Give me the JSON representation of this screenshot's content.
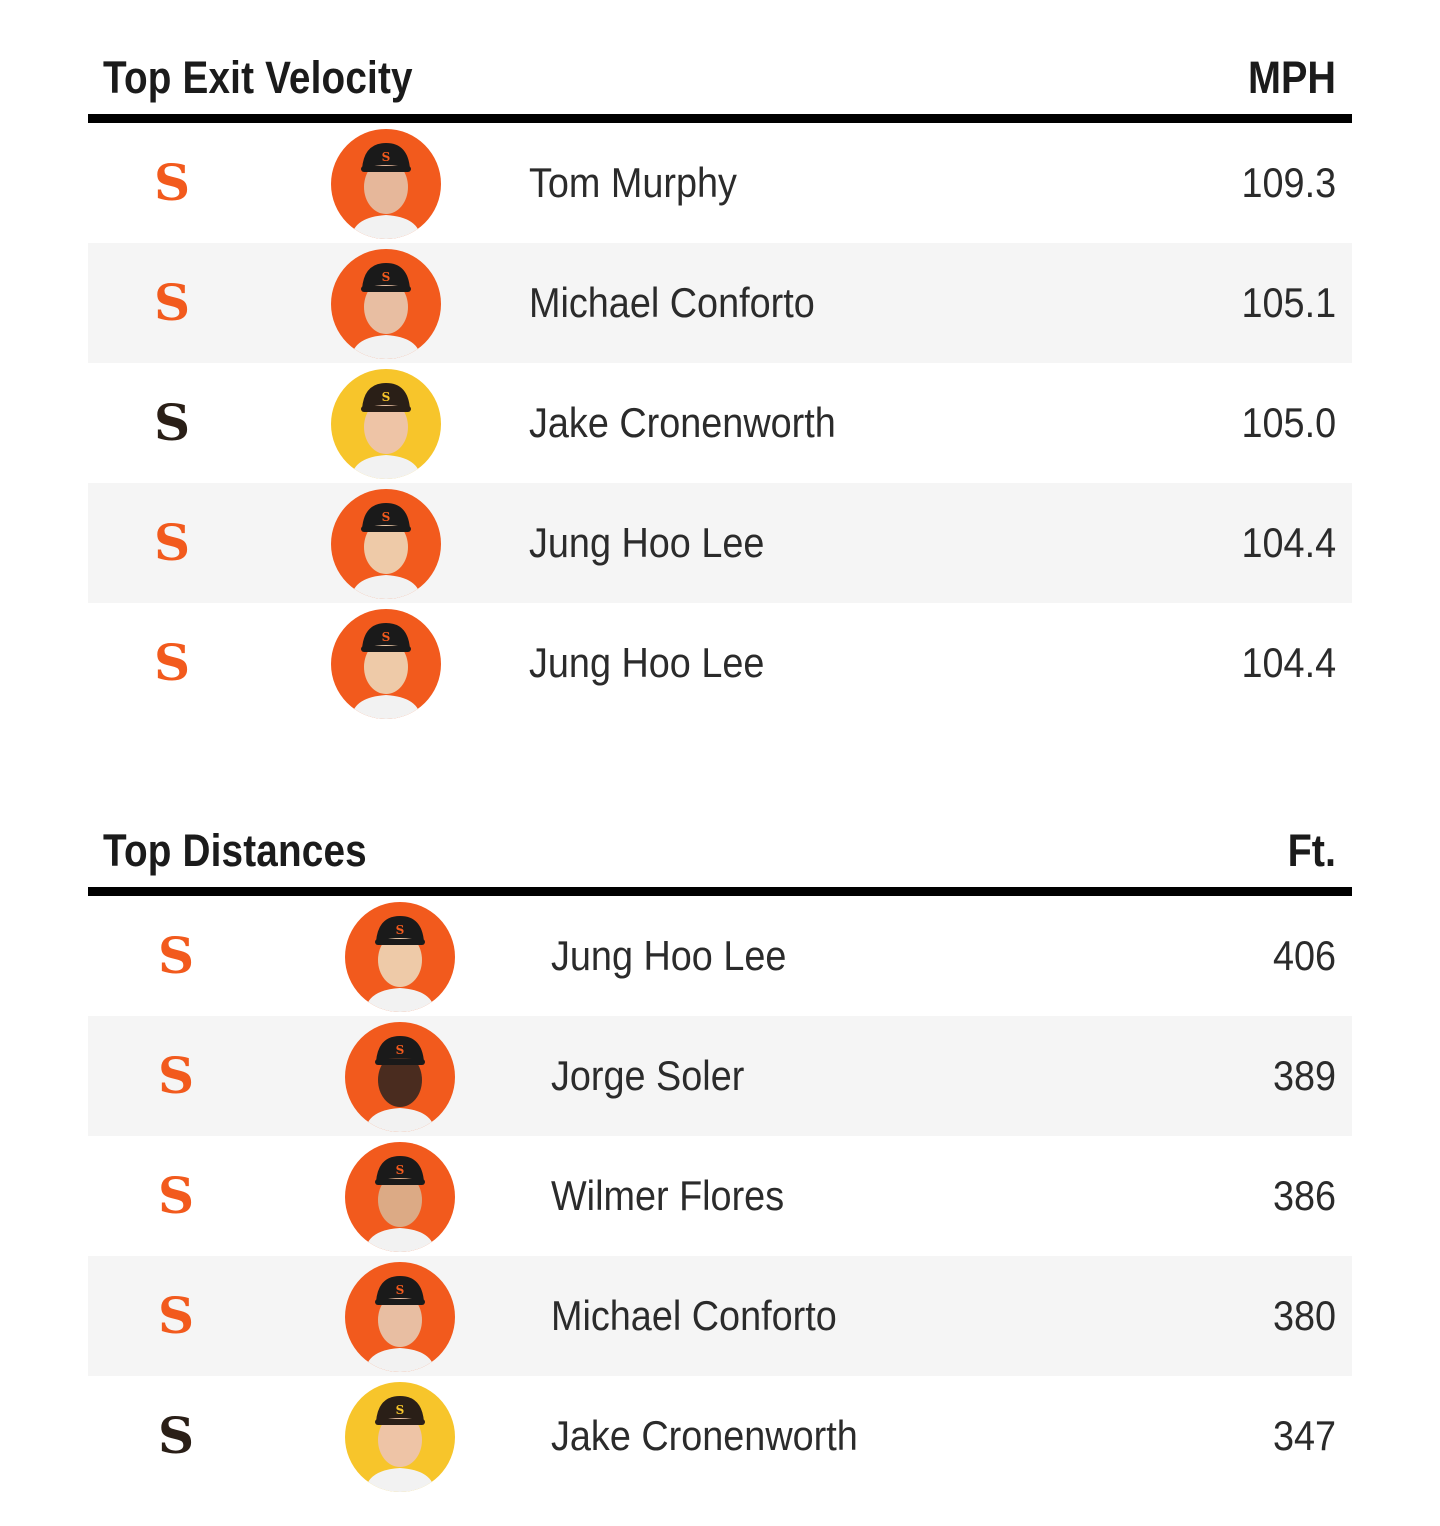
{
  "exit_velocity": {
    "title": "Top Exit Velocity",
    "unit": "MPH",
    "rows": [
      {
        "team": "SF",
        "name": "Tom Murphy",
        "value": "109.3",
        "skin": "#e6b79a",
        "cap": "#1a1a1a"
      },
      {
        "team": "SF",
        "name": "Michael Conforto",
        "value": "105.1",
        "skin": "#e8bea2",
        "cap": "#1a1a1a"
      },
      {
        "team": "SD",
        "name": "Jake Cronenworth",
        "value": "105.0",
        "skin": "#eec4a6",
        "cap": "#2a1f17"
      },
      {
        "team": "SF",
        "name": "Jung Hoo Lee",
        "value": "104.4",
        "skin": "#eecaa8",
        "cap": "#1a1a1a"
      },
      {
        "team": "SF",
        "name": "Jung Hoo Lee",
        "value": "104.4",
        "skin": "#eecaa8",
        "cap": "#1a1a1a"
      }
    ]
  },
  "distances": {
    "title": "Top Distances",
    "unit": "Ft.",
    "rows": [
      {
        "team": "SF",
        "name": "Jung Hoo Lee",
        "value": "406",
        "skin": "#eecaa8",
        "cap": "#1a1a1a"
      },
      {
        "team": "SF",
        "name": "Jorge Soler",
        "value": "389",
        "skin": "#4a2c1f",
        "cap": "#1a1a1a"
      },
      {
        "team": "SF",
        "name": "Wilmer Flores",
        "value": "386",
        "skin": "#dcaa85",
        "cap": "#1a1a1a"
      },
      {
        "team": "SF",
        "name": "Michael Conforto",
        "value": "380",
        "skin": "#e8bea2",
        "cap": "#1a1a1a"
      },
      {
        "team": "SD",
        "name": "Jake Cronenworth",
        "value": "347",
        "skin": "#eec4a6",
        "cap": "#2a1f17"
      }
    ]
  },
  "colors": {
    "sf_orange": "#f25a1d",
    "sd_yellow": "#f7c52b",
    "sd_brown": "#2a1f17",
    "row_alt": "#f5f5f5",
    "rule": "#000000"
  },
  "team_logos": {
    "SF": {
      "glyph": "SF",
      "icon": "sf-giants-logo-icon"
    },
    "SD": {
      "glyph": "SD",
      "icon": "sd-padres-logo-icon"
    }
  }
}
